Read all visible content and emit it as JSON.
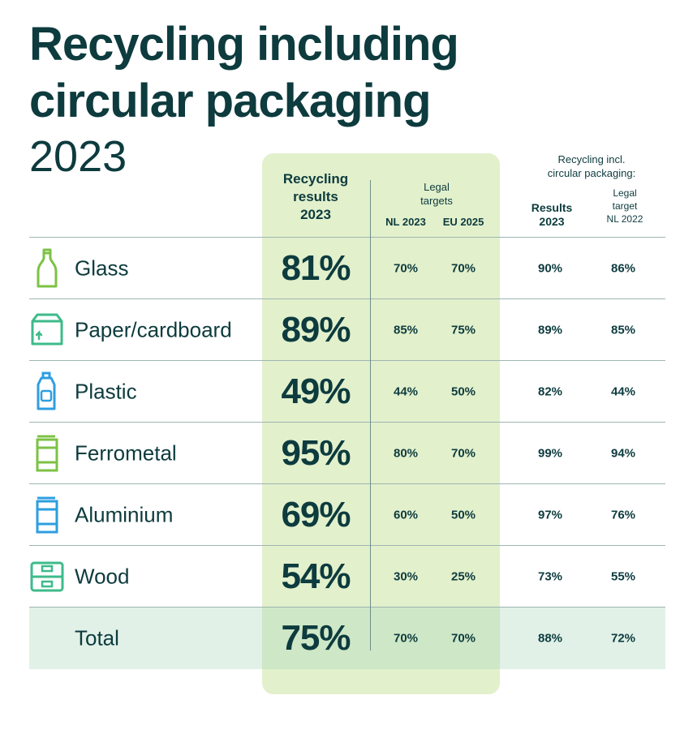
{
  "title": {
    "line1": "Recycling including",
    "line2": "circular packaging",
    "year": "2023"
  },
  "headers": {
    "main": [
      "Recycling",
      "results",
      "2023"
    ],
    "legal": [
      "Legal",
      "targets"
    ],
    "nl2023": "NL 2023",
    "eu2025": "EU 2025",
    "circular": [
      "Recycling incl.",
      "circular packaging:"
    ],
    "results": [
      "Results",
      "2023"
    ],
    "legal_target": [
      "Legal",
      "target",
      "NL 2022"
    ]
  },
  "colors": {
    "title": "#0d3b3e",
    "highlight_column": "#e2f0cc",
    "total_row": "#dcefe2",
    "green_icon": "#7cc244",
    "teal_icon": "#3dbb8a",
    "blue_icon": "#2e9ee0"
  },
  "chart_data": {
    "type": "table",
    "columns": [
      "Recycling results 2023",
      "Legal targets NL 2023",
      "Legal targets EU 2025",
      "Recycling incl. circular packaging: Results 2023",
      "Recycling incl. circular packaging: Legal target NL 2022"
    ],
    "rows": [
      {
        "material": "Glass",
        "icon": "bottle-icon",
        "result": "81%",
        "nl2023": "70%",
        "eu2025": "70%",
        "circ_result": "90%",
        "circ_target": "86%"
      },
      {
        "material": "Paper/cardboard",
        "icon": "box-icon",
        "result": "89%",
        "nl2023": "85%",
        "eu2025": "75%",
        "circ_result": "89%",
        "circ_target": "85%"
      },
      {
        "material": "Plastic",
        "icon": "plastic-bottle-icon",
        "result": "49%",
        "nl2023": "44%",
        "eu2025": "50%",
        "circ_result": "82%",
        "circ_target": "44%"
      },
      {
        "material": "Ferrometal",
        "icon": "can-icon",
        "result": "95%",
        "nl2023": "80%",
        "eu2025": "70%",
        "circ_result": "99%",
        "circ_target": "94%"
      },
      {
        "material": "Aluminium",
        "icon": "can-icon",
        "result": "69%",
        "nl2023": "60%",
        "eu2025": "50%",
        "circ_result": "97%",
        "circ_target": "76%"
      },
      {
        "material": "Wood",
        "icon": "crate-icon",
        "result": "54%",
        "nl2023": "30%",
        "eu2025": "25%",
        "circ_result": "73%",
        "circ_target": "55%"
      },
      {
        "material": "Total",
        "icon": "",
        "result": "75%",
        "nl2023": "70%",
        "eu2025": "70%",
        "circ_result": "88%",
        "circ_target": "72%"
      }
    ]
  }
}
